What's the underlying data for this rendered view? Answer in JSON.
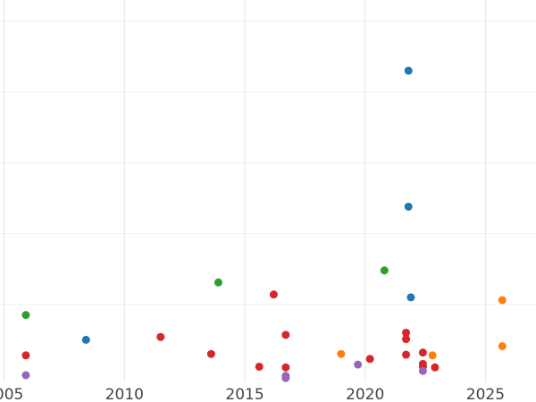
{
  "chart_data": {
    "type": "scatter",
    "title": "",
    "xlabel": "",
    "ylabel": "",
    "x_ticks": [
      "2005",
      "2010",
      "2015",
      "2020",
      "2025"
    ],
    "x_tick_values": [
      2005,
      2010,
      2015,
      2020,
      2025
    ],
    "xlim": [
      2004.9,
      2027.1
    ],
    "ylim": [
      0,
      5.4
    ],
    "y_gridlines": [
      0,
      1,
      2,
      3,
      4,
      5
    ],
    "show_y_tick_labels": false,
    "grid": true,
    "legend": "none",
    "series": [
      {
        "color": "#1f77b4",
        "points": [
          {
            "x": 2008.4,
            "y": 0.5
          },
          {
            "x": 2021.8,
            "y": 4.3
          },
          {
            "x": 2021.8,
            "y": 2.38
          },
          {
            "x": 2021.9,
            "y": 1.1
          }
        ]
      },
      {
        "color": "#2ca02c",
        "points": [
          {
            "x": 2005.9,
            "y": 0.85
          },
          {
            "x": 2013.9,
            "y": 1.31
          },
          {
            "x": 2020.8,
            "y": 1.48
          }
        ]
      },
      {
        "color": "#d62728",
        "points": [
          {
            "x": 2005.9,
            "y": 0.28
          },
          {
            "x": 2011.5,
            "y": 0.54
          },
          {
            "x": 2013.6,
            "y": 0.3
          },
          {
            "x": 2015.6,
            "y": 0.12
          },
          {
            "x": 2016.2,
            "y": 1.14
          },
          {
            "x": 2016.7,
            "y": 0.57
          },
          {
            "x": 2016.7,
            "y": 0.11
          },
          {
            "x": 2020.2,
            "y": 0.23
          },
          {
            "x": 2021.7,
            "y": 0.6
          },
          {
            "x": 2021.7,
            "y": 0.51
          },
          {
            "x": 2021.7,
            "y": 0.29
          },
          {
            "x": 2022.4,
            "y": 0.32
          },
          {
            "x": 2022.4,
            "y": 0.16
          },
          {
            "x": 2022.4,
            "y": 0.12
          },
          {
            "x": 2022.9,
            "y": 0.11
          }
        ]
      },
      {
        "color": "#ff7f0e",
        "points": [
          {
            "x": 2019.0,
            "y": 0.3
          },
          {
            "x": 2022.8,
            "y": 0.28
          },
          {
            "x": 2025.7,
            "y": 1.06
          },
          {
            "x": 2025.7,
            "y": 0.41
          }
        ]
      },
      {
        "color": "#9467bd",
        "points": [
          {
            "x": 2005.9,
            "y": 0.0
          },
          {
            "x": 2016.7,
            "y": -0.01
          },
          {
            "x": 2016.7,
            "y": -0.04
          },
          {
            "x": 2019.7,
            "y": 0.15
          },
          {
            "x": 2022.4,
            "y": 0.06
          }
        ]
      }
    ]
  }
}
